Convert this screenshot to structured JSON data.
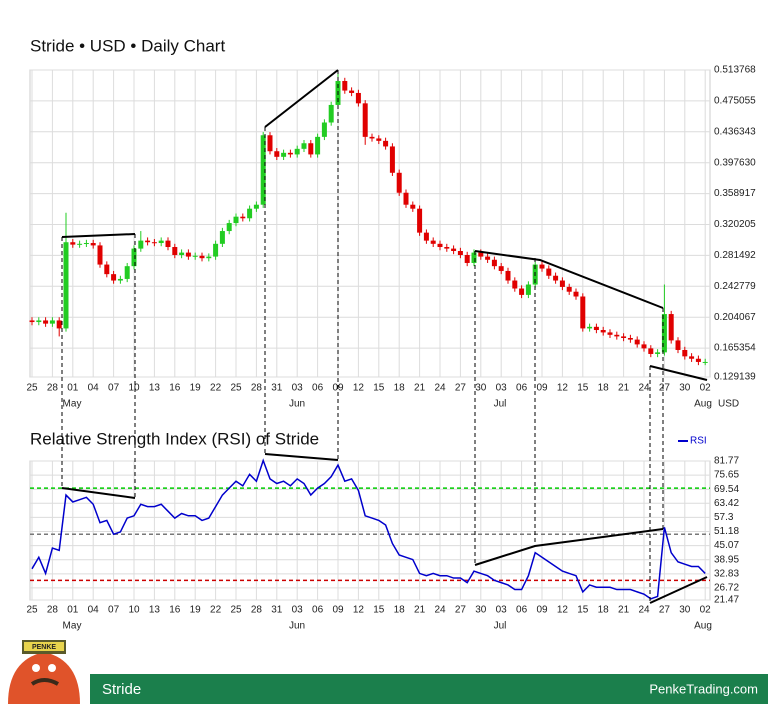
{
  "chart_data": [
    {
      "type": "candlestick",
      "title": "Stride • USD • Daily Chart",
      "unit_label": "USD",
      "month_labels": [
        "May",
        "Jun",
        "Jul",
        "Aug"
      ],
      "categories": [
        "25",
        null,
        null,
        "28",
        null,
        null,
        "01",
        null,
        null,
        "04",
        null,
        null,
        "07",
        null,
        null,
        "10",
        null,
        null,
        "13",
        null,
        null,
        "16",
        null,
        null,
        "19",
        null,
        null,
        "22",
        null,
        null,
        "25",
        null,
        null,
        "28",
        null,
        null,
        "31",
        null,
        null,
        "03",
        null,
        null,
        "06",
        null,
        null,
        "09",
        null,
        null,
        "12",
        null,
        null,
        "15",
        null,
        null,
        "18",
        null,
        null,
        "21",
        null,
        null,
        "24",
        null,
        null,
        "27",
        null,
        null,
        "30",
        null,
        null,
        "03",
        null,
        null,
        "06",
        null,
        null,
        "09",
        null,
        null,
        "12",
        null,
        null,
        "15",
        null,
        null,
        "18",
        null,
        null,
        "21",
        null,
        null,
        "24",
        null,
        null,
        "27",
        null,
        null,
        "30",
        null,
        null,
        "02"
      ],
      "open": [
        0.2,
        0.198,
        0.2,
        0.196,
        0.2,
        0.19,
        0.298,
        0.295,
        0.296,
        0.297,
        0.294,
        0.27,
        0.258,
        0.25,
        0.252,
        0.268,
        0.29,
        0.3,
        0.298,
        0.297,
        0.3,
        0.292,
        0.282,
        0.285,
        0.28,
        0.281,
        0.278,
        0.28,
        0.296,
        0.312,
        0.322,
        0.33,
        0.328,
        0.34,
        0.345,
        0.432,
        0.412,
        0.405,
        0.41,
        0.408,
        0.415,
        0.422,
        0.408,
        0.43,
        0.448,
        0.47,
        0.5,
        0.488,
        0.485,
        0.472,
        0.43,
        0.428,
        0.425,
        0.418,
        0.385,
        0.36,
        0.345,
        0.34,
        0.31,
        0.3,
        0.296,
        0.292,
        0.29,
        0.287,
        0.282,
        0.272,
        0.285,
        0.28,
        0.276,
        0.268,
        0.262,
        0.25,
        0.24,
        0.232,
        0.245,
        0.27,
        0.265,
        0.256,
        0.25,
        0.242,
        0.236,
        0.23,
        0.19,
        0.192,
        0.188,
        0.185,
        0.182,
        0.18,
        0.178,
        0.176,
        0.17,
        0.165,
        0.158,
        0.16,
        0.208,
        0.175,
        0.163,
        0.155,
        0.152,
        0.148
      ],
      "high": [
        0.204,
        0.204,
        0.204,
        0.204,
        0.204,
        0.335,
        0.302,
        0.3,
        0.301,
        0.301,
        0.298,
        0.274,
        0.262,
        0.256,
        0.272,
        0.294,
        0.312,
        0.304,
        0.302,
        0.304,
        0.304,
        0.296,
        0.289,
        0.289,
        0.285,
        0.285,
        0.284,
        0.3,
        0.316,
        0.326,
        0.334,
        0.334,
        0.344,
        0.349,
        0.436,
        0.436,
        0.416,
        0.414,
        0.414,
        0.419,
        0.426,
        0.426,
        0.434,
        0.452,
        0.474,
        0.512,
        0.504,
        0.492,
        0.489,
        0.476,
        0.434,
        0.432,
        0.429,
        0.422,
        0.389,
        0.364,
        0.349,
        0.344,
        0.314,
        0.304,
        0.3,
        0.296,
        0.294,
        0.291,
        0.286,
        0.289,
        0.289,
        0.284,
        0.28,
        0.272,
        0.266,
        0.254,
        0.244,
        0.249,
        0.274,
        0.274,
        0.269,
        0.26,
        0.254,
        0.246,
        0.24,
        0.234,
        0.196,
        0.196,
        0.192,
        0.189,
        0.186,
        0.184,
        0.182,
        0.18,
        0.174,
        0.169,
        0.164,
        0.245,
        0.212,
        0.179,
        0.167,
        0.159,
        0.156,
        0.152
      ],
      "low": [
        0.194,
        0.194,
        0.192,
        0.192,
        0.18,
        0.186,
        0.291,
        0.291,
        0.292,
        0.29,
        0.266,
        0.254,
        0.246,
        0.246,
        0.248,
        0.264,
        0.286,
        0.294,
        0.293,
        0.293,
        0.288,
        0.278,
        0.278,
        0.276,
        0.276,
        0.274,
        0.274,
        0.276,
        0.292,
        0.308,
        0.318,
        0.324,
        0.324,
        0.336,
        0.341,
        0.408,
        0.401,
        0.401,
        0.404,
        0.404,
        0.411,
        0.404,
        0.404,
        0.426,
        0.444,
        0.466,
        0.484,
        0.481,
        0.468,
        0.42,
        0.424,
        0.421,
        0.414,
        0.381,
        0.356,
        0.341,
        0.336,
        0.306,
        0.296,
        0.292,
        0.288,
        0.286,
        0.283,
        0.278,
        0.268,
        0.268,
        0.276,
        0.272,
        0.264,
        0.258,
        0.246,
        0.236,
        0.228,
        0.228,
        0.241,
        0.261,
        0.252,
        0.246,
        0.238,
        0.232,
        0.226,
        0.186,
        0.186,
        0.184,
        0.181,
        0.178,
        0.176,
        0.174,
        0.172,
        0.166,
        0.161,
        0.154,
        0.154,
        0.156,
        0.171,
        0.159,
        0.151,
        0.148,
        0.144,
        0.144
      ],
      "close": [
        0.198,
        0.2,
        0.196,
        0.2,
        0.19,
        0.298,
        0.295,
        0.296,
        0.297,
        0.294,
        0.27,
        0.258,
        0.25,
        0.252,
        0.268,
        0.29,
        0.3,
        0.298,
        0.297,
        0.3,
        0.292,
        0.282,
        0.285,
        0.28,
        0.281,
        0.278,
        0.28,
        0.296,
        0.312,
        0.322,
        0.33,
        0.328,
        0.34,
        0.345,
        0.432,
        0.412,
        0.405,
        0.41,
        0.408,
        0.415,
        0.422,
        0.408,
        0.43,
        0.448,
        0.47,
        0.5,
        0.488,
        0.485,
        0.472,
        0.43,
        0.428,
        0.425,
        0.418,
        0.385,
        0.36,
        0.345,
        0.34,
        0.31,
        0.3,
        0.296,
        0.292,
        0.29,
        0.287,
        0.282,
        0.272,
        0.285,
        0.28,
        0.276,
        0.268,
        0.262,
        0.25,
        0.24,
        0.232,
        0.245,
        0.27,
        0.265,
        0.256,
        0.25,
        0.242,
        0.236,
        0.23,
        0.19,
        0.192,
        0.188,
        0.185,
        0.182,
        0.18,
        0.178,
        0.176,
        0.17,
        0.165,
        0.158,
        0.16,
        0.208,
        0.175,
        0.163,
        0.155,
        0.152,
        0.148,
        0.148
      ],
      "up_color": "#22cc22",
      "down_color": "#e00000",
      "ylim": [
        0.129139,
        0.513768
      ],
      "yticks": [
        0.129139,
        0.165354,
        0.204067,
        0.242779,
        0.281492,
        0.320205,
        0.358917,
        {
          "value": 0.39763,
          "label": "0.397630"
        },
        0.436343,
        0.475055,
        0.513768
      ],
      "grid": true
    },
    {
      "type": "line",
      "title": "Relative Strength Index (RSI) of Stride",
      "month_labels": [
        "May",
        "Jun",
        "Jul",
        "Aug"
      ],
      "categories": [
        "25",
        null,
        null,
        "28",
        null,
        null,
        "01",
        null,
        null,
        "04",
        null,
        null,
        "07",
        null,
        null,
        "10",
        null,
        null,
        "13",
        null,
        null,
        "16",
        null,
        null,
        "19",
        null,
        null,
        "22",
        null,
        null,
        "25",
        null,
        null,
        "28",
        null,
        null,
        "31",
        null,
        null,
        "03",
        null,
        null,
        "06",
        null,
        null,
        "09",
        null,
        null,
        "12",
        null,
        null,
        "15",
        null,
        null,
        "18",
        null,
        null,
        "21",
        null,
        null,
        "24",
        null,
        null,
        "27",
        null,
        null,
        "30",
        null,
        null,
        "03",
        null,
        null,
        "06",
        null,
        null,
        "09",
        null,
        null,
        "12",
        null,
        null,
        "15",
        null,
        null,
        "18",
        null,
        null,
        "21",
        null,
        null,
        "24",
        null,
        null,
        "27",
        null,
        null,
        "30",
        null,
        null,
        "02"
      ],
      "series": [
        {
          "name": "RSI",
          "color": "#0000cc",
          "values": [
            35,
            40,
            33,
            44,
            43,
            67,
            64,
            65,
            66,
            63,
            55,
            56,
            50,
            51,
            57,
            58,
            63,
            62,
            62,
            63,
            60,
            57,
            59,
            58,
            58,
            56,
            57,
            62,
            67,
            70,
            73,
            71,
            76,
            73,
            82,
            74,
            72,
            73,
            71,
            74,
            72,
            67,
            70,
            72,
            75,
            80,
            73,
            74,
            69,
            58,
            57,
            56,
            54,
            46,
            41,
            40,
            39,
            33,
            32,
            33,
            32,
            32,
            31,
            31,
            29,
            34,
            33,
            32,
            30,
            29,
            28,
            26,
            26,
            32,
            42,
            40,
            38,
            36,
            34,
            33,
            32,
            25,
            28,
            27,
            27,
            27,
            26,
            26,
            26,
            25,
            24,
            22,
            23,
            53,
            42,
            38,
            37,
            36,
            36,
            33
          ]
        }
      ],
      "levels": [
        {
          "value": 70,
          "color": "#00cc00"
        },
        {
          "value": 50,
          "color": "#777777"
        },
        {
          "value": 30,
          "color": "#cc0000"
        }
      ],
      "ylim": [
        21.47,
        81.77
      ],
      "yticks": [
        21.47,
        26.72,
        32.83,
        38.95,
        45.07,
        51.18,
        57.3,
        63.42,
        69.54,
        75.65,
        81.77
      ],
      "grid": true
    }
  ],
  "logo_text": "PENKE",
  "footer": {
    "name": "Stride",
    "site": "PenkeTrading.com"
  }
}
